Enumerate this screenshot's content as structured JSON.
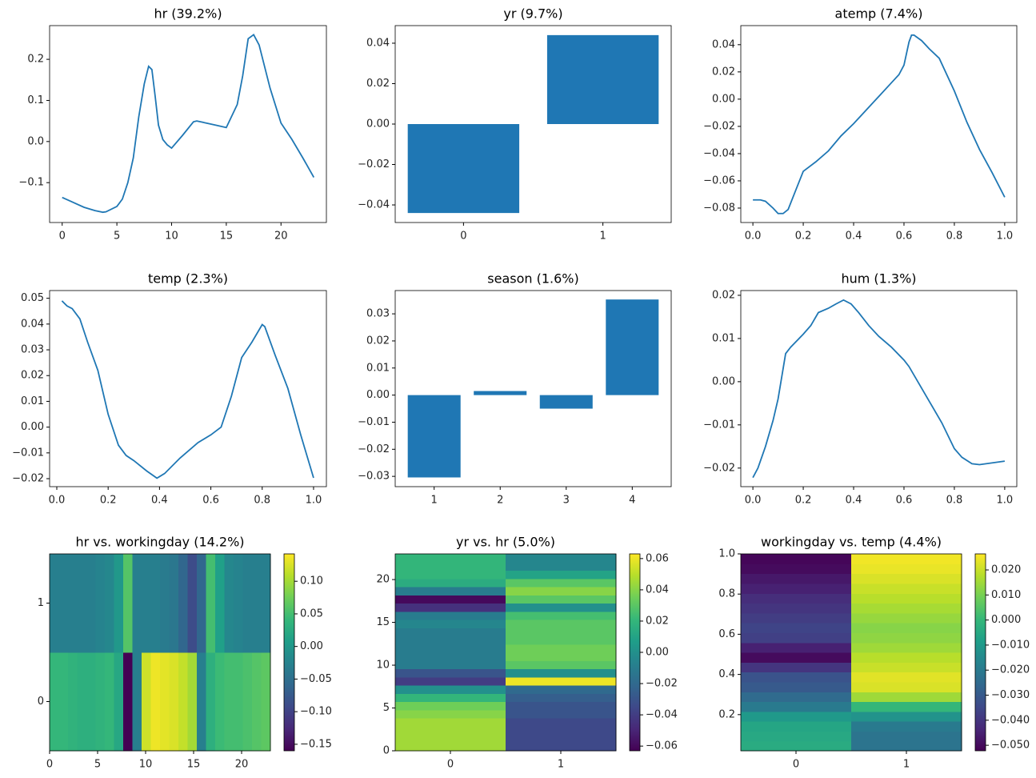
{
  "chart_data": [
    {
      "type": "line",
      "title": "hr (39.2%)",
      "color": "#1f77b4",
      "x": [
        0,
        1,
        2,
        3,
        3.7,
        4,
        5,
        5.5,
        6,
        6.5,
        7,
        7.5,
        7.9,
        8.2,
        8.5,
        8.8,
        9.2,
        9.6,
        10,
        11,
        12,
        12.3,
        13,
        14,
        15,
        16,
        16.5,
        17,
        17.5,
        18,
        19,
        20,
        21,
        22,
        23
      ],
      "values": [
        -0.136,
        -0.148,
        -0.16,
        -0.168,
        -0.172,
        -0.171,
        -0.158,
        -0.14,
        -0.1,
        -0.04,
        0.06,
        0.14,
        0.183,
        0.175,
        0.11,
        0.04,
        0.005,
        -0.008,
        -0.016,
        0.015,
        0.048,
        0.05,
        0.046,
        0.04,
        0.034,
        0.09,
        0.16,
        0.25,
        0.26,
        0.235,
        0.13,
        0.045,
        0.005,
        -0.04,
        -0.087
      ],
      "xlim": [
        -1.15,
        24.15
      ],
      "xticks": [
        0,
        5,
        10,
        15,
        20
      ],
      "ylim": [
        -0.197,
        0.282
      ],
      "yticks": [
        {
          "value": -0.1,
          "label": "−0.1"
        },
        {
          "value": 0,
          "label": "0.0"
        },
        0.1,
        0.2
      ]
    },
    {
      "type": "bar",
      "title": "yr (9.7%)",
      "color": "#1f77b4",
      "categories": [
        "0",
        "1"
      ],
      "values": [
        -0.044,
        0.044
      ],
      "ylim": [
        -0.0487,
        0.0487
      ],
      "yticks": [
        {
          "value": -0.04,
          "label": "−0.04"
        },
        {
          "value": -0.02,
          "label": "−0.02"
        },
        {
          "value": 0,
          "label": "0.00"
        },
        0.02,
        0.04
      ]
    },
    {
      "type": "line",
      "title": "atemp (7.4%)",
      "color": "#1f77b4",
      "x": [
        0,
        0.03,
        0.05,
        0.08,
        0.1,
        0.12,
        0.14,
        0.17,
        0.2,
        0.25,
        0.3,
        0.35,
        0.4,
        0.45,
        0.5,
        0.55,
        0.58,
        0.6,
        0.62,
        0.63,
        0.64,
        0.67,
        0.7,
        0.74,
        0.8,
        0.85,
        0.9,
        0.95,
        1.0
      ],
      "values": [
        -0.074,
        -0.074,
        -0.075,
        -0.08,
        -0.084,
        -0.084,
        -0.081,
        -0.067,
        -0.053,
        -0.046,
        -0.038,
        -0.027,
        -0.018,
        -0.008,
        0.002,
        0.012,
        0.018,
        0.025,
        0.042,
        0.047,
        0.047,
        0.043,
        0.037,
        0.03,
        0.006,
        -0.017,
        -0.037,
        -0.054,
        -0.072
      ],
      "xlim": [
        -0.048,
        1.048
      ],
      "xticks": [
        {
          "value": 0,
          "label": "0.0"
        },
        0.2,
        0.4,
        0.6,
        0.8,
        {
          "value": 1,
          "label": "1.0"
        }
      ],
      "ylim": [
        -0.0906,
        0.054
      ],
      "yticks": [
        {
          "value": -0.08,
          "label": "−0.08"
        },
        {
          "value": -0.06,
          "label": "−0.06"
        },
        {
          "value": -0.04,
          "label": "−0.04"
        },
        {
          "value": -0.02,
          "label": "−0.02"
        },
        {
          "value": 0,
          "label": "0.00"
        },
        0.02,
        0.04
      ]
    },
    {
      "type": "line",
      "title": "temp (2.3%)",
      "color": "#1f77b4",
      "x": [
        0.02,
        0.04,
        0.06,
        0.09,
        0.12,
        0.16,
        0.2,
        0.24,
        0.27,
        0.3,
        0.35,
        0.39,
        0.42,
        0.48,
        0.55,
        0.6,
        0.64,
        0.68,
        0.72,
        0.76,
        0.8,
        0.81,
        0.85,
        0.9,
        0.95,
        1.0
      ],
      "values": [
        0.049,
        0.047,
        0.046,
        0.042,
        0.033,
        0.022,
        0.005,
        -0.007,
        -0.011,
        -0.013,
        -0.017,
        -0.0198,
        -0.018,
        -0.012,
        -0.006,
        -0.003,
        0,
        0.012,
        0.027,
        0.033,
        0.0398,
        0.039,
        0.028,
        0.015,
        -0.003,
        -0.0197
      ],
      "xlim": [
        -0.028,
        1.05
      ],
      "xticks": [
        {
          "value": 0,
          "label": "0.0"
        },
        0.2,
        0.4,
        0.6,
        0.8,
        {
          "value": 1,
          "label": "1.0"
        }
      ],
      "ylim": [
        -0.0231,
        0.053
      ],
      "yticks": [
        {
          "value": -0.02,
          "label": "−0.02"
        },
        {
          "value": -0.01,
          "label": "−0.01"
        },
        {
          "value": 0,
          "label": "0.00"
        },
        0.01,
        0.02,
        0.03,
        0.04,
        0.05
      ]
    },
    {
      "type": "bar",
      "title": "season (1.6%)",
      "color": "#1f77b4",
      "categories": [
        "1",
        "2",
        "3",
        "4"
      ],
      "values": [
        -0.0304,
        0.0015,
        -0.005,
        0.0353
      ],
      "ylim": [
        -0.0338,
        0.0386
      ],
      "yticks": [
        {
          "value": -0.03,
          "label": "−0.03"
        },
        {
          "value": -0.02,
          "label": "−0.02"
        },
        {
          "value": -0.01,
          "label": "−0.01"
        },
        {
          "value": 0,
          "label": "0.00"
        },
        0.01,
        0.02,
        0.03
      ]
    },
    {
      "type": "line",
      "title": "hum (1.3%)",
      "color": "#1f77b4",
      "x": [
        0,
        0.02,
        0.05,
        0.08,
        0.1,
        0.13,
        0.15,
        0.2,
        0.23,
        0.26,
        0.3,
        0.33,
        0.36,
        0.39,
        0.42,
        0.46,
        0.5,
        0.55,
        0.6,
        0.62,
        0.66,
        0.7,
        0.75,
        0.8,
        0.83,
        0.87,
        0.9,
        1.0
      ],
      "values": [
        -0.0222,
        -0.02,
        -0.015,
        -0.009,
        -0.004,
        0.0065,
        0.008,
        0.011,
        0.013,
        0.016,
        0.017,
        0.018,
        0.0189,
        0.018,
        0.016,
        0.013,
        0.0105,
        0.008,
        0.005,
        0.0035,
        -0.0005,
        -0.0045,
        -0.0095,
        -0.0155,
        -0.0175,
        -0.019,
        -0.0192,
        -0.0184
      ],
      "xlim": [
        -0.048,
        1.048
      ],
      "xticks": [
        {
          "value": 0,
          "label": "0.0"
        },
        0.2,
        0.4,
        0.6,
        0.8,
        {
          "value": 1,
          "label": "1.0"
        }
      ],
      "ylim": [
        -0.0243,
        0.0211
      ],
      "yticks": [
        {
          "value": -0.02,
          "label": "−0.02"
        },
        {
          "value": -0.01,
          "label": "−0.01"
        },
        {
          "value": 0,
          "label": "0.00"
        },
        0.01,
        0.02
      ]
    },
    {
      "type": "heatmap",
      "title": "hr vs. workingday (14.2%)",
      "colormap": [
        "#440154",
        "#482878",
        "#3e4989",
        "#31688e",
        "#26828e",
        "#1f9e89",
        "#35b779",
        "#6ece58",
        "#b5de2b",
        "#fde725"
      ],
      "z": [
        [
          0.04,
          0.04,
          0.035,
          0.03,
          0.03,
          0.035,
          0.04,
          0.02,
          -0.16,
          -0.03,
          0.12,
          0.135,
          0.13,
          0.125,
          0.115,
          0.1,
          -0.03,
          0.03,
          0.045,
          0.05,
          0.05,
          0.055,
          0.06,
          0.065
        ],
        [
          -0.03,
          -0.03,
          -0.03,
          -0.03,
          -0.03,
          -0.025,
          -0.02,
          0.0,
          0.06,
          -0.03,
          -0.03,
          -0.03,
          -0.035,
          -0.04,
          -0.06,
          -0.09,
          -0.06,
          0.05,
          0.01,
          -0.02,
          -0.025,
          -0.03,
          -0.03,
          -0.03
        ]
      ],
      "xlim": [
        0,
        23
      ],
      "xticks": [
        0,
        5,
        10,
        15,
        20
      ],
      "ylim": [
        -0.5,
        1.5
      ],
      "yticks": [
        0,
        1
      ],
      "clim": [
        -0.16,
        0.142
      ],
      "cticks": [
        {
          "value": -0.15,
          "label": "−0.15"
        },
        {
          "value": -0.1,
          "label": "−0.10"
        },
        {
          "value": -0.05,
          "label": "−0.05"
        },
        {
          "value": 0,
          "label": "0.00"
        },
        0.05,
        {
          "value": 0.1,
          "label": "0.10"
        }
      ]
    },
    {
      "type": "heatmap",
      "title": "yr vs. hr (5.0%)",
      "colormap": [
        "#440154",
        "#482878",
        "#3e4989",
        "#31688e",
        "#26828e",
        "#1f9e89",
        "#35b779",
        "#6ece58",
        "#b5de2b",
        "#fde725"
      ],
      "z": [
        [
          0.045,
          -0.035
        ],
        [
          0.045,
          -0.035
        ],
        [
          0.045,
          -0.035
        ],
        [
          0.045,
          -0.035
        ],
        [
          0.04,
          -0.03
        ],
        [
          0.035,
          -0.03
        ],
        [
          0.02,
          -0.025
        ],
        [
          0.0,
          -0.02
        ],
        [
          -0.04,
          0.06
        ],
        [
          -0.03,
          0.0
        ],
        [
          -0.01,
          0.03
        ],
        [
          -0.01,
          0.035
        ],
        [
          -0.01,
          0.035
        ],
        [
          -0.01,
          0.03
        ],
        [
          -0.01,
          0.03
        ],
        [
          -0.005,
          0.03
        ],
        [
          -0.01,
          0.025
        ],
        [
          -0.045,
          0.0
        ],
        [
          -0.06,
          0.03
        ],
        [
          -0.01,
          0.04
        ],
        [
          0.015,
          0.03
        ],
        [
          0.02,
          0.01
        ],
        [
          0.02,
          -0.005
        ],
        [
          0.02,
          -0.005
        ]
      ],
      "xlim": [
        -0.5,
        1.5
      ],
      "xticks": [
        0,
        1
      ],
      "ylim": [
        0,
        23
      ],
      "yticks": [
        0,
        5,
        10,
        15,
        20
      ],
      "clim": [
        -0.063,
        0.063
      ],
      "cticks": [
        {
          "value": -0.06,
          "label": "−0.06"
        },
        {
          "value": -0.04,
          "label": "−0.04"
        },
        {
          "value": -0.02,
          "label": "−0.02"
        },
        {
          "value": 0,
          "label": "0.00"
        },
        0.02,
        0.04,
        0.06
      ]
    },
    {
      "type": "heatmap",
      "title": "workingday vs. temp (4.4%)",
      "colormap": [
        "#440154",
        "#482878",
        "#3e4989",
        "#31688e",
        "#26828e",
        "#1f9e89",
        "#35b779",
        "#6ece58",
        "#b5de2b",
        "#fde725"
      ],
      "z": [
        [
          -0.004,
          -0.022
        ],
        [
          -0.005,
          -0.022
        ],
        [
          -0.006,
          -0.02
        ],
        [
          -0.01,
          -0.012
        ],
        [
          -0.02,
          0.0
        ],
        [
          -0.025,
          0.015
        ],
        [
          -0.03,
          0.022
        ],
        [
          -0.032,
          0.023
        ],
        [
          -0.04,
          0.02
        ],
        [
          -0.05,
          0.018
        ],
        [
          -0.045,
          0.015
        ],
        [
          -0.037,
          0.013
        ],
        [
          -0.036,
          0.012
        ],
        [
          -0.038,
          0.014
        ],
        [
          -0.04,
          0.016
        ],
        [
          -0.042,
          0.018
        ],
        [
          -0.045,
          0.02
        ],
        [
          -0.047,
          0.022
        ],
        [
          -0.05,
          0.024
        ],
        [
          -0.051,
          0.025
        ]
      ],
      "xlim": [
        -0.5,
        1.5
      ],
      "xticks": [
        0,
        1
      ],
      "ylim": [
        0.02,
        1.0
      ],
      "yticks": [
        0.2,
        0.4,
        0.6,
        0.8,
        {
          "value": 1,
          "label": "1.0"
        }
      ],
      "clim": [
        -0.0522,
        0.0264
      ],
      "cticks": [
        {
          "value": -0.05,
          "label": "−0.050"
        },
        {
          "value": -0.04,
          "label": "−0.040"
        },
        {
          "value": -0.03,
          "label": "−0.030"
        },
        {
          "value": -0.02,
          "label": "−0.020"
        },
        {
          "value": -0.01,
          "label": "−0.010"
        },
        {
          "value": 0,
          "label": "0.000"
        },
        {
          "value": 0.01,
          "label": "0.010"
        },
        {
          "value": 0.02,
          "label": "0.020"
        }
      ]
    }
  ]
}
